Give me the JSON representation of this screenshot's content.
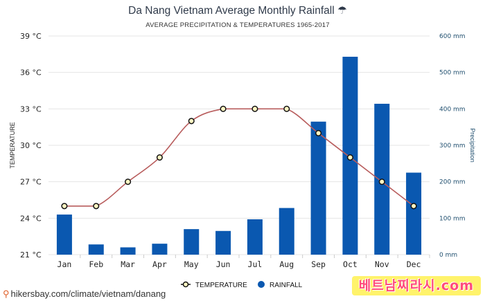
{
  "source_link": "hikersbay.com/climate/vietnam/danang",
  "watermark": "베트남찌라시.com",
  "chart_data": {
    "type": "bar+line",
    "title": "Da Nang Vietnam Average Monthly Rainfall ☂",
    "subtitle": "AVERAGE PRECIPITATION & TEMPERATURES 1965-2017",
    "categories": [
      "Jan",
      "Feb",
      "Mar",
      "Apr",
      "May",
      "Jun",
      "Jul",
      "Aug",
      "Sep",
      "Oct",
      "Nov",
      "Dec"
    ],
    "y_left": {
      "label": "TEMPERATURE",
      "range": [
        21,
        39
      ],
      "ticks": [
        21,
        24,
        27,
        30,
        33,
        36,
        39
      ],
      "tick_labels": [
        "21 °C",
        "24 °C",
        "27 °C",
        "30 °C",
        "33 °C",
        "36 °C",
        "39 °C"
      ]
    },
    "y_right": {
      "label": "Precipitation",
      "range": [
        0,
        600
      ],
      "ticks": [
        0,
        100,
        200,
        300,
        400,
        500,
        600
      ],
      "tick_labels": [
        "0 mm",
        "100 mm",
        "200 mm",
        "300 mm",
        "400 mm",
        "500 mm",
        "600 mm"
      ]
    },
    "series": [
      {
        "name": "TEMPERATURE",
        "kind": "line",
        "axis": "left",
        "color": "#b85c5c",
        "values": [
          25,
          25,
          27,
          29,
          32,
          33,
          33,
          33,
          31,
          29,
          27,
          25
        ]
      },
      {
        "name": "RAINFALL",
        "kind": "bar",
        "axis": "right",
        "color": "#0a58b0",
        "values": [
          110,
          28,
          20,
          30,
          70,
          65,
          97,
          128,
          365,
          543,
          414,
          225
        ]
      }
    ],
    "legend": {
      "position": "bottom",
      "entries": [
        "TEMPERATURE",
        "RAINFALL"
      ]
    }
  }
}
